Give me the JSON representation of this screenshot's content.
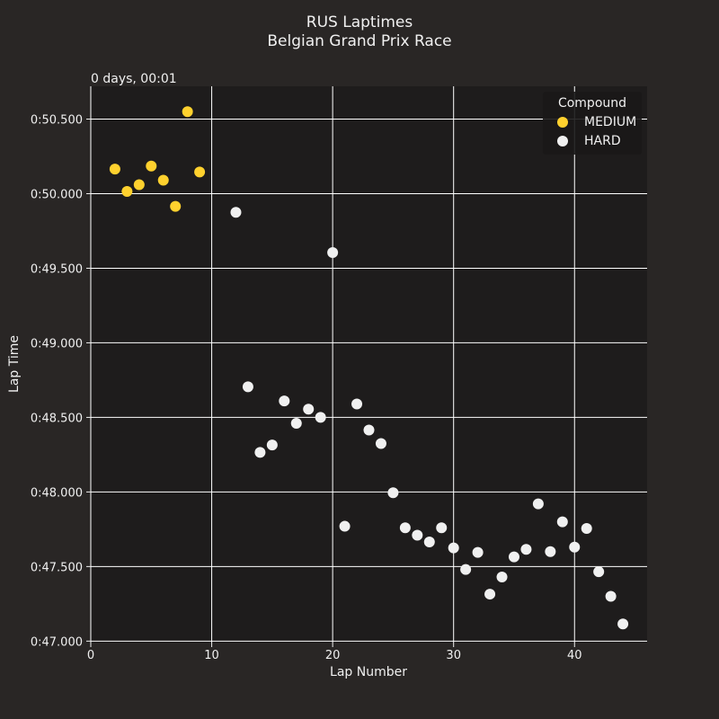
{
  "chart_data": {
    "type": "scatter",
    "title": "RUS Laptimes",
    "subtitle": "Belgian Grand Prix Race",
    "xlabel": "Lap Number",
    "ylabel": "Lap Time",
    "offset_label": "0 days, 00:01",
    "xlim": [
      0,
      46
    ],
    "ylim": [
      46.99,
      50.72
    ],
    "x_ticks": [
      0,
      10,
      20,
      30,
      40
    ],
    "y_ticks": [
      47.0,
      47.5,
      48.0,
      48.5,
      49.0,
      49.5,
      50.0,
      50.5
    ],
    "y_tick_labels": [
      "0:47.000",
      "0:47.500",
      "0:48.000",
      "0:48.500",
      "0:49.000",
      "0:49.500",
      "0:50.000",
      "0:50.500"
    ],
    "grid": true,
    "legend": {
      "title": "Compound",
      "position": "top-right"
    },
    "series": [
      {
        "name": "MEDIUM",
        "color": "#ffd12e",
        "points": [
          [
            2,
            50.165
          ],
          [
            3,
            50.015
          ],
          [
            4,
            50.06
          ],
          [
            5,
            50.185
          ],
          [
            6,
            50.09
          ],
          [
            7,
            49.915
          ],
          [
            8,
            50.55
          ],
          [
            9,
            50.145
          ]
        ]
      },
      {
        "name": "HARD",
        "color": "#f0f0f0",
        "points": [
          [
            12,
            49.875
          ],
          [
            13,
            48.705
          ],
          [
            14,
            48.265
          ],
          [
            15,
            48.315
          ],
          [
            16,
            48.61
          ],
          [
            17,
            48.46
          ],
          [
            18,
            48.555
          ],
          [
            19,
            48.5
          ],
          [
            20,
            49.605
          ],
          [
            21,
            47.77
          ],
          [
            22,
            48.59
          ],
          [
            23,
            48.415
          ],
          [
            24,
            48.325
          ],
          [
            25,
            47.995
          ],
          [
            26,
            47.76
          ],
          [
            27,
            47.71
          ],
          [
            28,
            47.665
          ],
          [
            29,
            47.76
          ],
          [
            30,
            47.625
          ],
          [
            31,
            47.48
          ],
          [
            32,
            47.595
          ],
          [
            33,
            47.315
          ],
          [
            34,
            47.43
          ],
          [
            35,
            47.565
          ],
          [
            36,
            47.615
          ],
          [
            37,
            47.92
          ],
          [
            38,
            47.6
          ],
          [
            39,
            47.8
          ],
          [
            40,
            47.63
          ],
          [
            41,
            47.755
          ],
          [
            42,
            47.465
          ],
          [
            43,
            47.3
          ],
          [
            44,
            47.115
          ]
        ]
      }
    ]
  }
}
